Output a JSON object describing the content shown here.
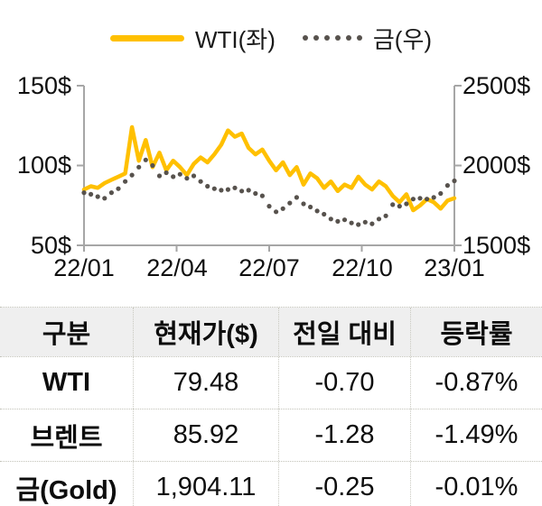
{
  "legend": {
    "wti_label": "WTI(좌)",
    "gold_label": "금(우)"
  },
  "chart": {
    "left_axis_ticks": [
      "150$",
      "100$",
      "50$"
    ],
    "right_axis_ticks": [
      "2500$",
      "2000$",
      "1500$"
    ],
    "x_axis_ticks": [
      "22/01",
      "22/04",
      "22/07",
      "22/10",
      "23/01"
    ],
    "colors": {
      "wti": "#FFC000",
      "gold": "#57524D",
      "axis": "#A6A6A6"
    }
  },
  "chart_data": {
    "type": "line",
    "x_tick_labels": [
      "22/01",
      "22/04",
      "22/07",
      "22/10",
      "23/01"
    ],
    "x_range_note": "weekly points from 2022-01 to 2023-01",
    "left_ylim": [
      50,
      150
    ],
    "right_ylim": [
      1500,
      2500
    ],
    "grid": false,
    "legend_position": "top-center",
    "series": [
      {
        "name": "WTI(좌)",
        "axis": "left",
        "style": "solid",
        "color": "#FFC000",
        "values": [
          85,
          87,
          86,
          89,
          91,
          93,
          95,
          124,
          103,
          116,
          99,
          108,
          97,
          103,
          99,
          94,
          101,
          105,
          102,
          107,
          113,
          122,
          118,
          120,
          111,
          107,
          110,
          103,
          97,
          102,
          94,
          99,
          88,
          95,
          92,
          86,
          90,
          84,
          88,
          86,
          93,
          88,
          85,
          90,
          87,
          81,
          77,
          82,
          72,
          75,
          79,
          77,
          73,
          78,
          79.48
        ]
      },
      {
        "name": "금(우)",
        "axis": "right",
        "style": "dotted",
        "color": "#57524D",
        "values": [
          1830,
          1820,
          1805,
          1795,
          1830,
          1855,
          1900,
          1940,
          1990,
          2035,
          2000,
          1935,
          1955,
          1930,
          1945,
          1920,
          1935,
          1900,
          1870,
          1855,
          1845,
          1850,
          1860,
          1840,
          1845,
          1825,
          1810,
          1745,
          1710,
          1730,
          1765,
          1800,
          1760,
          1740,
          1715,
          1695,
          1665,
          1650,
          1660,
          1640,
          1630,
          1645,
          1635,
          1665,
          1685,
          1755,
          1745,
          1760,
          1790,
          1795,
          1790,
          1800,
          1825,
          1875,
          1904
        ]
      }
    ]
  },
  "table": {
    "headers": [
      "구분",
      "현재가($)",
      "전일 대비",
      "등락률"
    ],
    "rows": [
      {
        "name": "WTI",
        "price": "79.48",
        "change": "-0.70",
        "pct": "-0.87%"
      },
      {
        "name": "브렌트",
        "price": "85.92",
        "change": "-1.28",
        "pct": "-1.49%"
      },
      {
        "name": "금(Gold)",
        "price": "1,904.11",
        "change": "-0.25",
        "pct": "-0.01%"
      }
    ]
  }
}
